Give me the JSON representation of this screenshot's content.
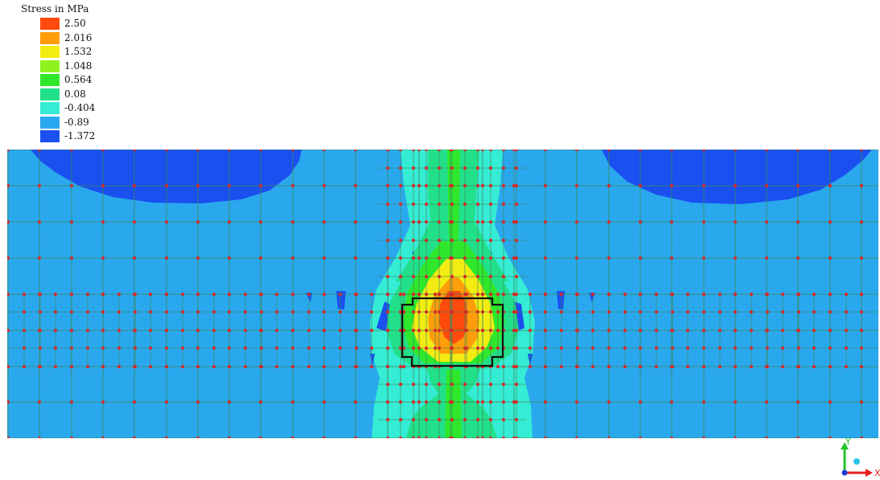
{
  "legend": {
    "title": "Stress in MPa",
    "entries": [
      {
        "label": "2.50",
        "color": "#ff4a0e"
      },
      {
        "label": "2.016",
        "color": "#ff9d0a"
      },
      {
        "label": "1.532",
        "color": "#f2ec13"
      },
      {
        "label": "1.048",
        "color": "#8ff21f"
      },
      {
        "label": "0.564",
        "color": "#2fe82b"
      },
      {
        "label": "0.08",
        "color": "#22e08a"
      },
      {
        "label": "-0.404",
        "color": "#35ecd4"
      },
      {
        "label": "-0.89",
        "color": "#2aa8ee"
      },
      {
        "label": "-1.372",
        "color": "#1a4ff0"
      }
    ]
  },
  "model": {
    "background_color": "#2aa8ee",
    "mesh_line_color": "#3c8a5a",
    "node_color": "#d42a2a",
    "outline_color": "#111111"
  },
  "axes": {
    "y_label": "Y",
    "x_label": "X",
    "y_color": "#22c52a",
    "x_color": "#e82020"
  }
}
